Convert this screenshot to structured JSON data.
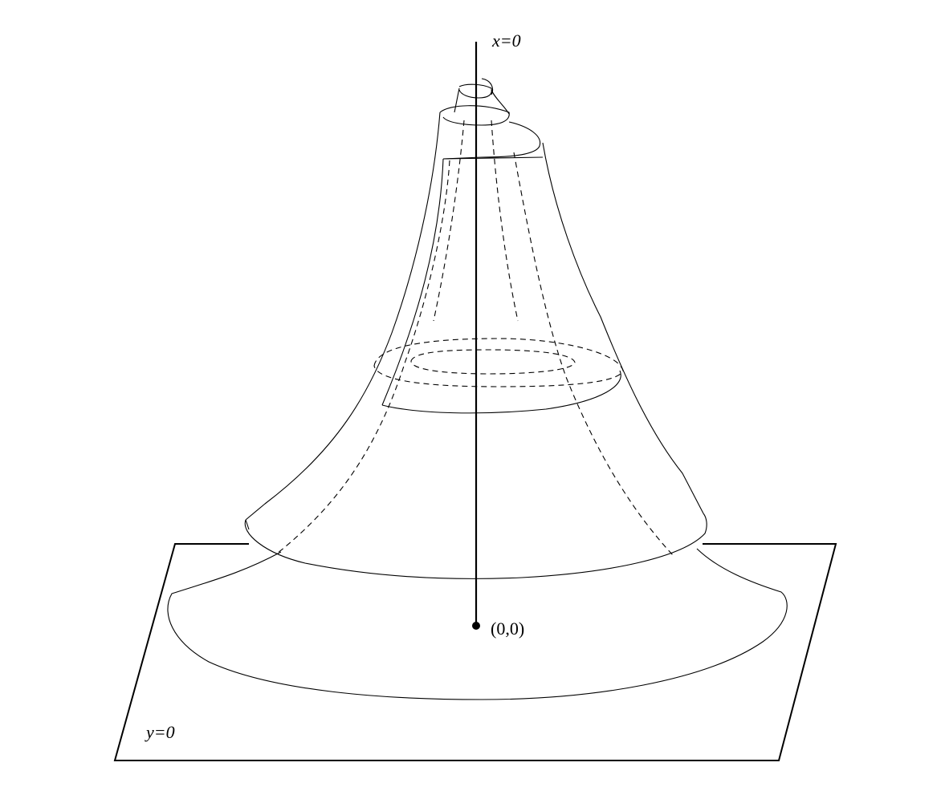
{
  "labels": {
    "x_axis": "x=0",
    "plane": "y=0",
    "origin": "(0,0)"
  },
  "colors": {
    "stroke": "#000000",
    "background": "#ffffff"
  }
}
